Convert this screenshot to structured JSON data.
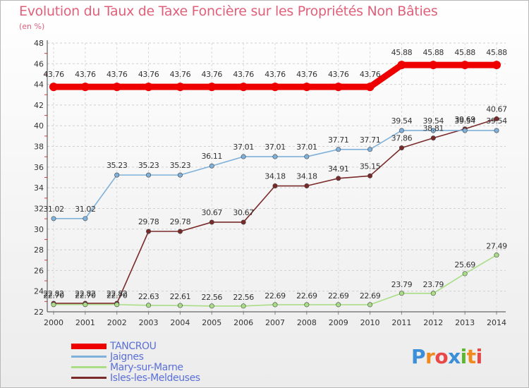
{
  "chart_data": {
    "type": "line",
    "title": "Evolution du Taux de Taxe Foncière sur les Propriétés Non Bâties",
    "subtitle": "(en %)",
    "xlabel": "",
    "ylabel": "",
    "x": [
      "2000",
      "2001",
      "2002",
      "2003",
      "2004",
      "2005",
      "2006",
      "2007",
      "2008",
      "2009",
      "2010",
      "2011",
      "2012",
      "2013",
      "2014"
    ],
    "ylim": [
      22,
      48
    ],
    "yticks": [
      "22",
      "24",
      "26",
      "28",
      "30",
      "32",
      "34",
      "36",
      "38",
      "40",
      "42",
      "44",
      "46",
      "48"
    ],
    "grid": true,
    "legend_position": "bottom-left",
    "series": [
      {
        "name": "TANCROU",
        "color": "#ee0000",
        "values": [
          43.76,
          43.76,
          43.76,
          43.76,
          43.76,
          43.76,
          43.76,
          43.76,
          43.76,
          43.76,
          43.76,
          45.88,
          45.88,
          45.88,
          45.88
        ],
        "labels": [
          "43.76",
          "43.76",
          "43.76",
          "43.76",
          "43.76",
          "43.76",
          "43.76",
          "43.76",
          "43.76",
          "43.76",
          "43.76",
          "45.88",
          "45.88",
          "45.88",
          "45.88"
        ]
      },
      {
        "name": "Jaignes",
        "color": "#7fb1da",
        "values": [
          31.02,
          31.02,
          35.23,
          35.23,
          35.23,
          36.11,
          37.01,
          37.01,
          37.01,
          37.71,
          37.71,
          39.54,
          39.54,
          39.54,
          39.54
        ],
        "labels": [
          "31.02",
          "31.02",
          "35.23",
          "35.23",
          "35.23",
          "36.11",
          "37.01",
          "37.01",
          "37.01",
          "37.71",
          "37.71",
          "39.54",
          "39.54",
          "39.54",
          "39.54"
        ]
      },
      {
        "name": "Mary-sur-Marne",
        "color": "#a9dd86",
        "values": [
          22.7,
          22.7,
          22.7,
          22.63,
          22.61,
          22.56,
          22.56,
          22.69,
          22.69,
          22.69,
          22.69,
          23.79,
          23.79,
          25.69,
          27.49
        ],
        "labels": [
          "22.70",
          "22.70",
          "22.70",
          "22.63",
          "22.61",
          "22.56",
          "22.56",
          "22.69",
          "22.69",
          "22.69",
          "22.69",
          "23.79",
          "23.79",
          "25.69",
          "27.49"
        ]
      },
      {
        "name": "Isles-les-Meldeuses",
        "color": "#7a2a2a",
        "values": [
          22.82,
          22.82,
          22.82,
          29.78,
          29.78,
          30.67,
          30.67,
          34.18,
          34.18,
          34.91,
          35.15,
          37.86,
          38.81,
          39.69,
          40.67
        ],
        "labels": [
          "22.82",
          "22.82",
          "22.82",
          "29.78",
          "29.78",
          "30.67",
          "30.67",
          "34.18",
          "34.18",
          "34.91",
          "35.15",
          "37.86",
          "38.81",
          "39.69",
          "40.67"
        ]
      }
    ]
  },
  "brand": {
    "letters": [
      "P",
      "r",
      "o",
      "x",
      "i",
      "t",
      "i"
    ]
  }
}
